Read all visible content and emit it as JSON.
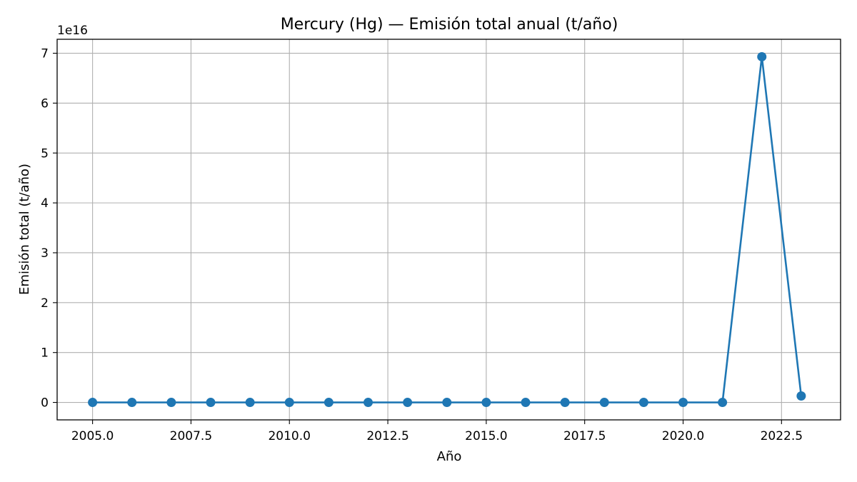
{
  "chart_data": {
    "type": "line",
    "title": "Mercury (Hg) — Emisión total anual (t/año)",
    "xlabel": "Año",
    "ylabel": "Emisión total (t/año)",
    "y_offset_label": "1e16",
    "y_scale": 1e+16,
    "xlim": [
      2004.1,
      2024.0
    ],
    "ylim": [
      -3500000000000000.0,
      7.28e+16
    ],
    "grid": true,
    "color": "#1f77b4",
    "x_ticks": [
      2005.0,
      2007.5,
      2010.0,
      2012.5,
      2015.0,
      2017.5,
      2020.0,
      2022.5
    ],
    "x_tick_labels": [
      "2005.0",
      "2007.5",
      "2010.0",
      "2012.5",
      "2015.0",
      "2017.5",
      "2020.0",
      "2022.5"
    ],
    "y_ticks": [
      0,
      1e+16,
      2e+16,
      3e+16,
      4e+16,
      5e+16,
      6e+16,
      7e+16
    ],
    "y_tick_labels": [
      "0",
      "1",
      "2",
      "3",
      "4",
      "5",
      "6",
      "7"
    ],
    "x": [
      2005,
      2006,
      2007,
      2008,
      2009,
      2010,
      2011,
      2012,
      2013,
      2014,
      2015,
      2016,
      2017,
      2018,
      2019,
      2020,
      2021,
      2022,
      2023
    ],
    "values": [
      0,
      0,
      0,
      0,
      0,
      0,
      0,
      0,
      0,
      0,
      0,
      0,
      0,
      0,
      0,
      0,
      0,
      6.93e+16,
      1300000000000000.0
    ]
  }
}
